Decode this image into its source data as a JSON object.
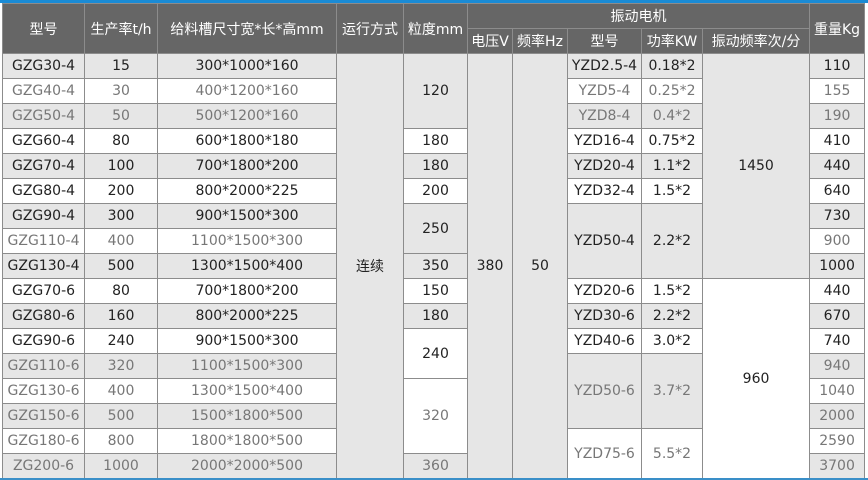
{
  "headers": {
    "model": "型号",
    "capacity": "生产率t/h",
    "size": "给料槽尺寸宽*长*高mm",
    "run_mode": "运行方式",
    "granularity": "粒度mm",
    "motor_group": "振动电机",
    "voltage": "电压V",
    "frequency": "频率Hz",
    "motor_model": "型号",
    "power": "功率KW",
    "vib_freq": "振动频率次/分",
    "weight": "重量Kg"
  },
  "run_mode": "连续",
  "voltage": "380",
  "frequency": "50",
  "rows": [
    {
      "model": "GZG30-4",
      "capacity": "15",
      "size": "300*1000*160",
      "weight": "110",
      "muted": false
    },
    {
      "model": "GZG40-4",
      "capacity": "30",
      "size": "400*1200*160",
      "weight": "155",
      "muted": true
    },
    {
      "model": "GZG50-4",
      "capacity": "50",
      "size": "500*1200*160",
      "weight": "190",
      "muted": true
    },
    {
      "model": "GZG60-4",
      "capacity": "80",
      "size": "600*1800*180",
      "weight": "410",
      "muted": false
    },
    {
      "model": "GZG70-4",
      "capacity": "100",
      "size": "700*1800*200",
      "weight": "440",
      "muted": false
    },
    {
      "model": "GZG80-4",
      "capacity": "200",
      "size": "800*2000*225",
      "weight": "640",
      "muted": false
    },
    {
      "model": "GZG90-4",
      "capacity": "300",
      "size": "900*1500*300",
      "weight": "730",
      "muted": false
    },
    {
      "model": "GZG110-4",
      "capacity": "400",
      "size": "1100*1500*300",
      "weight": "900",
      "muted": true
    },
    {
      "model": "GZG130-4",
      "capacity": "500",
      "size": "1300*1500*400",
      "weight": "1000",
      "muted": false
    },
    {
      "model": "GZG70-6",
      "capacity": "80",
      "size": "700*1800*200",
      "weight": "440",
      "muted": false
    },
    {
      "model": "GZG80-6",
      "capacity": "160",
      "size": "800*2000*225",
      "weight": "670",
      "muted": false
    },
    {
      "model": "GZG90-6",
      "capacity": "240",
      "size": "900*1500*300",
      "weight": "740",
      "muted": false
    },
    {
      "model": "GZG110-6",
      "capacity": "320",
      "size": "1100*1500*300",
      "weight": "940",
      "muted": true
    },
    {
      "model": "GZG130-6",
      "capacity": "400",
      "size": "1300*1500*400",
      "weight": "1040",
      "muted": true
    },
    {
      "model": "GZG150-6",
      "capacity": "500",
      "size": "1500*1800*500",
      "weight": "2000",
      "muted": true
    },
    {
      "model": "GZG180-6",
      "capacity": "800",
      "size": "1800*1800*500",
      "weight": "2590",
      "muted": true
    },
    {
      "model": "ZG200-6",
      "capacity": "1000",
      "size": "2000*2000*500",
      "weight": "3700",
      "muted": true
    }
  ],
  "granularity": [
    {
      "value": "120",
      "rowspan": 3,
      "muted": false
    },
    {
      "value": "180",
      "rowspan": 1,
      "muted": false
    },
    {
      "value": "180",
      "rowspan": 1,
      "muted": false
    },
    {
      "value": "200",
      "rowspan": 1,
      "muted": false
    },
    {
      "value": "250",
      "rowspan": 2,
      "muted": false
    },
    {
      "value": "350",
      "rowspan": 1,
      "muted": false
    },
    {
      "value": "150",
      "rowspan": 1,
      "muted": false
    },
    {
      "value": "180",
      "rowspan": 1,
      "muted": false
    },
    {
      "value": "240",
      "rowspan": 2,
      "muted": false
    },
    {
      "value": "320",
      "rowspan": 3,
      "muted": true
    },
    {
      "value": "360",
      "rowspan": 1,
      "muted": true
    }
  ],
  "motors": [
    {
      "model": "YZD2.5-4",
      "power": "0.18*2",
      "rowspan": 1,
      "muted": false
    },
    {
      "model": "YZD5-4",
      "power": "0.25*2",
      "rowspan": 1,
      "muted": true
    },
    {
      "model": "YZD8-4",
      "power": "0.4*2",
      "rowspan": 1,
      "muted": true
    },
    {
      "model": "YZD16-4",
      "power": "0.75*2",
      "rowspan": 1,
      "muted": false
    },
    {
      "model": "YZD20-4",
      "power": "1.1*2",
      "rowspan": 1,
      "muted": false
    },
    {
      "model": "YZD32-4",
      "power": "1.5*2",
      "rowspan": 1,
      "muted": false
    },
    {
      "model": "YZD50-4",
      "power": "2.2*2",
      "rowspan": 3,
      "muted": false
    },
    {
      "model": "YZD20-6",
      "power": "1.5*2",
      "rowspan": 1,
      "muted": false
    },
    {
      "model": "YZD30-6",
      "power": "2.2*2",
      "rowspan": 1,
      "muted": false
    },
    {
      "model": "YZD40-6",
      "power": "3.0*2",
      "rowspan": 1,
      "muted": false
    },
    {
      "model": "YZD50-6",
      "power": "3.7*2",
      "rowspan": 3,
      "muted": true
    },
    {
      "model": "YZD75-6",
      "power": "5.5*2",
      "rowspan": 2,
      "muted": true
    }
  ],
  "vib_freqs": [
    {
      "value": "1450",
      "rowspan": 9
    },
    {
      "value": "960",
      "rowspan": 8
    }
  ]
}
